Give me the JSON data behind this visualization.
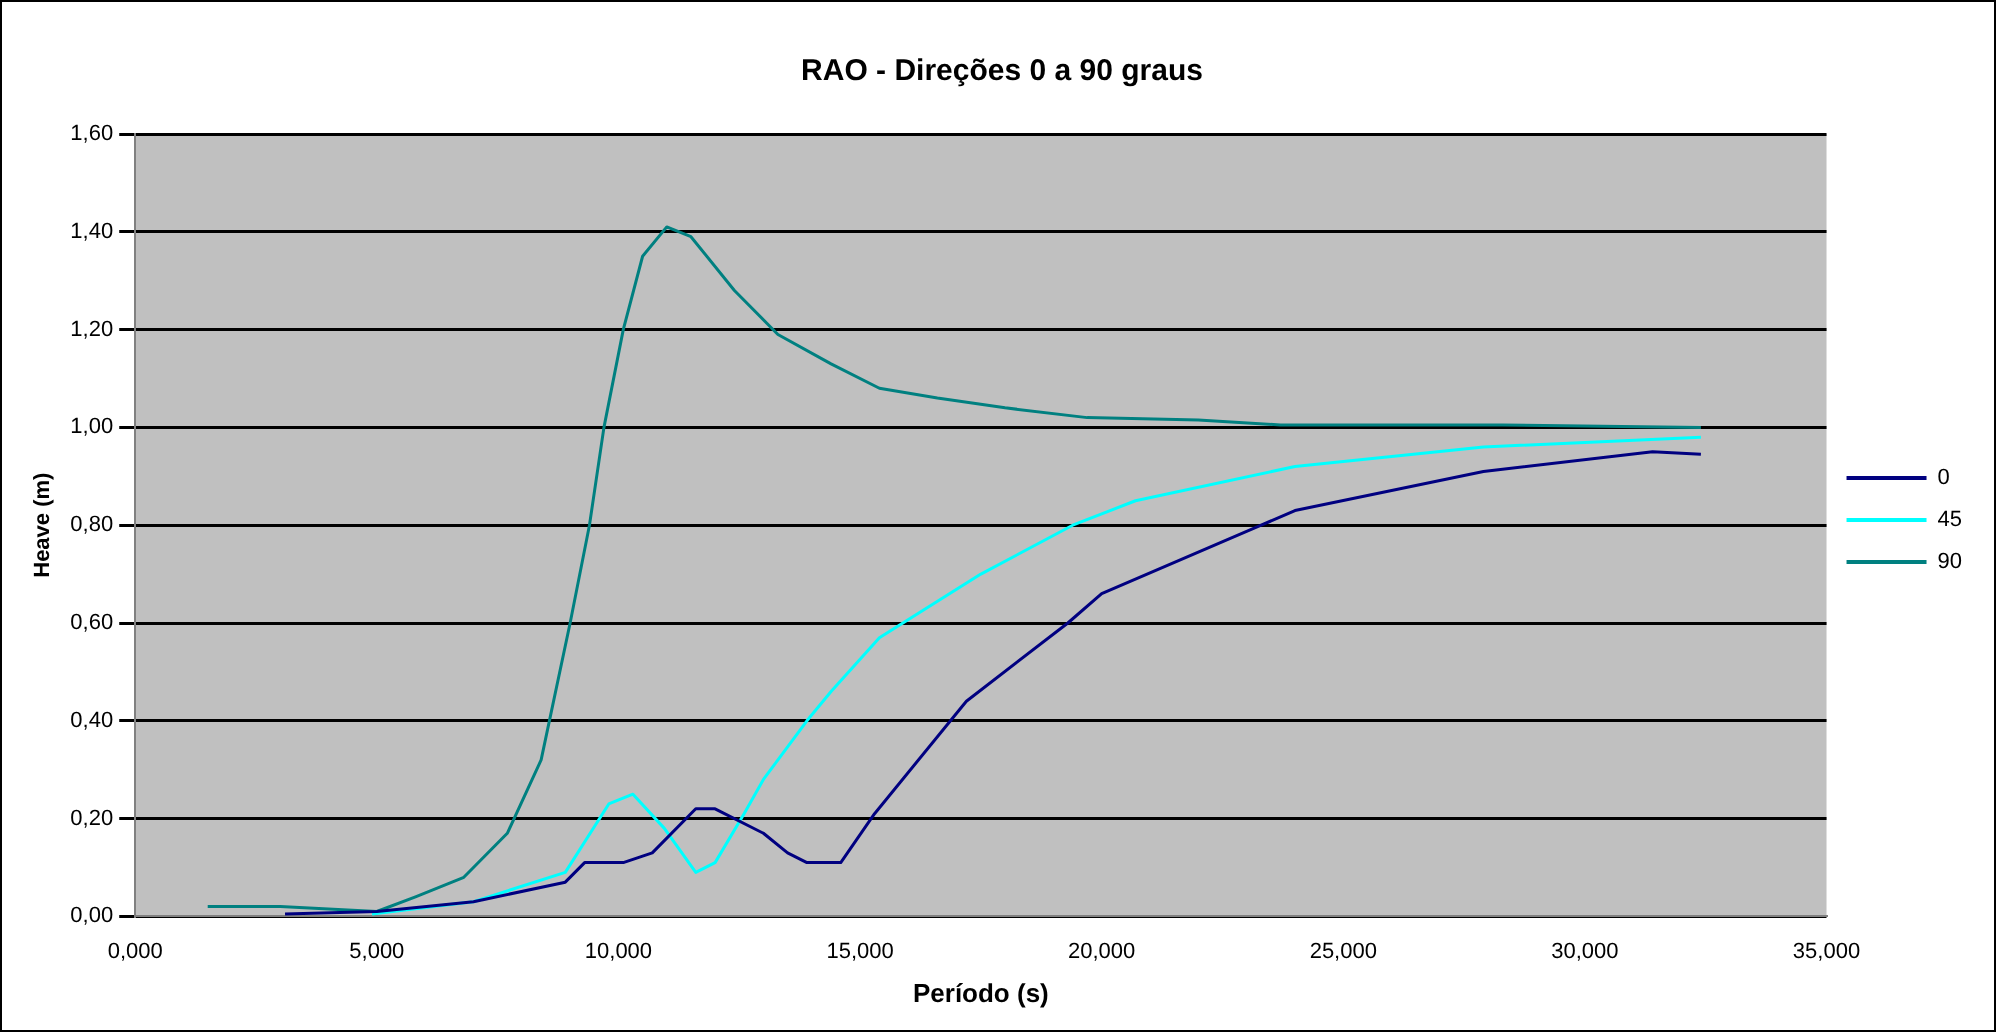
{
  "chart_data": {
    "type": "line",
    "title": "RAO - Direções 0 a 90 graus",
    "xlabel": "Período (s)",
    "ylabel": "Heave (m)",
    "xlim": [
      0,
      35
    ],
    "xticks": [
      {
        "value": 0,
        "label": "0,000"
      },
      {
        "value": 5,
        "label": "5,000"
      },
      {
        "value": 10,
        "label": "10,000"
      },
      {
        "value": 15,
        "label": "15,000"
      },
      {
        "value": 20,
        "label": "20,000"
      },
      {
        "value": 25,
        "label": "25,000"
      },
      {
        "value": 30,
        "label": "30,000"
      },
      {
        "value": 35,
        "label": "35,000"
      }
    ],
    "ylim": [
      0,
      1.6
    ],
    "yticks": [
      {
        "value": 0,
        "label": "0,00"
      },
      {
        "value": 0.2,
        "label": "0,20"
      },
      {
        "value": 0.4,
        "label": "0,40"
      },
      {
        "value": 0.6,
        "label": "0,60"
      },
      {
        "value": 0.8,
        "label": "0,80"
      },
      {
        "value": 1,
        "label": "1,00"
      },
      {
        "value": 1.2,
        "label": "1,20"
      },
      {
        "value": 1.4,
        "label": "1,40"
      },
      {
        "value": 1.6,
        "label": "1,60"
      }
    ],
    "grid": "y",
    "legend": "right",
    "marker": "none",
    "line_style": "solid",
    "series": [
      {
        "name": "0",
        "color": "#000080",
        "x": [
          3.1,
          5,
          7,
          8.9,
          9.3,
          10.1,
          10.7,
          11.6,
          12,
          13,
          13.5,
          13.9,
          14.6,
          15.3,
          17.2,
          19.3,
          20,
          23.3,
          24,
          27.9,
          31.4,
          32.4
        ],
        "values": [
          0.005,
          0.01,
          0.03,
          0.07,
          0.11,
          0.11,
          0.13,
          0.22,
          0.22,
          0.17,
          0.13,
          0.11,
          0.11,
          0.21,
          0.44,
          0.6,
          0.66,
          0.8,
          0.83,
          0.91,
          0.95,
          0.945
        ]
      },
      {
        "name": "45",
        "color": "#00ffff",
        "x": [
          4.9,
          7,
          8.9,
          9.8,
          10.3,
          10.95,
          11.6,
          12,
          12.6,
          13,
          13.9,
          14.4,
          15.4,
          17.5,
          19.4,
          20.7,
          24,
          27.9,
          32.4
        ],
        "values": [
          0.005,
          0.03,
          0.09,
          0.23,
          0.25,
          0.18,
          0.09,
          0.11,
          0.21,
          0.28,
          0.4,
          0.46,
          0.57,
          0.7,
          0.8,
          0.85,
          0.92,
          0.96,
          0.98
        ]
      },
      {
        "name": "90",
        "color": "#008080",
        "x": [
          1.5,
          3,
          5,
          5.8,
          6.8,
          7.7,
          8.4,
          9,
          9.4,
          9.7,
          10.1,
          10.5,
          11,
          11.5,
          12.4,
          13.3,
          14.4,
          15.4,
          16.6,
          18,
          19.7,
          22,
          23.7,
          28.3,
          32.4
        ],
        "values": [
          0.02,
          0.02,
          0.01,
          0.04,
          0.08,
          0.17,
          0.32,
          0.6,
          0.8,
          1,
          1.2,
          1.35,
          1.41,
          1.39,
          1.28,
          1.19,
          1.13,
          1.08,
          1.06,
          1.04,
          1.02,
          1.015,
          1.005,
          1.005,
          1
        ]
      }
    ]
  }
}
